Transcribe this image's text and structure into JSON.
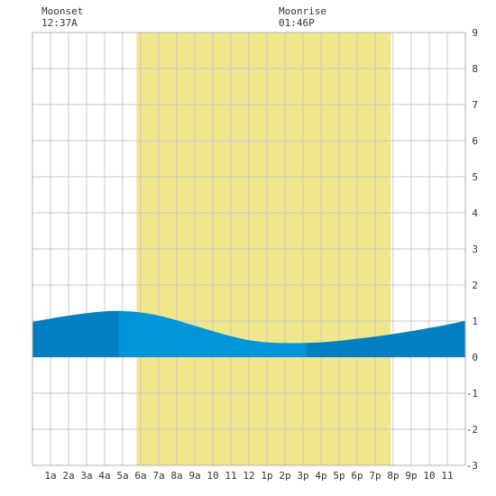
{
  "header": {
    "moonset_label": "Moonset",
    "moonset_time": "12:37A",
    "moonrise_label": "Moonrise",
    "moonrise_time": "01:46P"
  },
  "chart_data": {
    "type": "area",
    "title": "",
    "xlabel": "",
    "ylabel": "",
    "x_range_hours": [
      0,
      24
    ],
    "ylim": [
      -3,
      9
    ],
    "grid": true,
    "x_tick_labels": [
      "1a",
      "2a",
      "3a",
      "4a",
      "5a",
      "6a",
      "7a",
      "8a",
      "9a",
      "10",
      "11",
      "12",
      "1p",
      "2p",
      "3p",
      "4p",
      "5p",
      "6p",
      "7p",
      "8p",
      "9p",
      "10",
      "11"
    ],
    "y_tick_labels": [
      "9",
      "8",
      "7",
      "6",
      "5",
      "4",
      "3",
      "2",
      "1",
      "0",
      "-1",
      "-2",
      "-3"
    ],
    "daylight": {
      "start_hour": 5.77,
      "end_hour": 19.87,
      "color": "#f0e68c"
    },
    "series": [
      {
        "x": [
          0,
          1,
          2,
          3,
          4,
          4.8,
          6,
          7,
          8,
          9,
          10,
          11,
          12,
          13,
          14,
          15,
          16,
          17,
          18,
          19,
          20,
          21,
          22,
          23,
          24
        ],
        "y": [
          0.98,
          1.07,
          1.15,
          1.22,
          1.27,
          1.28,
          1.24,
          1.15,
          1.02,
          0.87,
          0.72,
          0.58,
          0.47,
          0.41,
          0.39,
          0.39,
          0.41,
          0.45,
          0.51,
          0.57,
          0.64,
          0.72,
          0.81,
          0.9,
          1.01
        ]
      }
    ],
    "fill_segments": [
      {
        "from_hour": 0,
        "to_hour": 4.8,
        "color": "#0080c0"
      },
      {
        "from_hour": 4.8,
        "to_hour": 15.2,
        "color": "#0094d8"
      },
      {
        "from_hour": 15.2,
        "to_hour": 24,
        "color": "#0080c0"
      }
    ],
    "colors": {
      "grid": "#c8c8c8",
      "plot_bg": "#ffffff",
      "text": "#333333"
    }
  }
}
